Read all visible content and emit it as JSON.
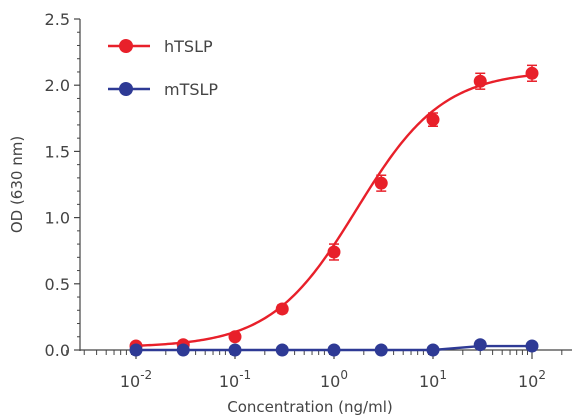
{
  "chart_data": {
    "type": "line",
    "title": "",
    "xlabel": "Concentration (ng/ml)",
    "ylabel": "OD (630 nm)",
    "xscale": "log",
    "xlim": [
      0.002,
      300
    ],
    "ylim": [
      0,
      2.5
    ],
    "grid": false,
    "legend_position": "top-left",
    "x_tick_labels": [
      {
        "base": "10",
        "exp": "-2",
        "value": 0.01
      },
      {
        "base": "10",
        "exp": "-1",
        "value": 0.1
      },
      {
        "base": "10",
        "exp": "0",
        "value": 1
      },
      {
        "base": "10",
        "exp": "1",
        "value": 10
      },
      {
        "base": "10",
        "exp": "2",
        "value": 100
      }
    ],
    "y_tick_labels": [
      "0.0",
      "0.5",
      "1.0",
      "1.5",
      "2.0",
      "2.5"
    ],
    "y_tick_values": [
      0,
      0.5,
      1.0,
      1.5,
      2.0,
      2.5
    ],
    "series": [
      {
        "name": "hTSLP",
        "color": "#e8202a",
        "x": [
          0.01,
          0.03,
          0.1,
          0.3,
          1,
          3,
          10,
          30,
          100
        ],
        "y": [
          0.03,
          0.04,
          0.1,
          0.31,
          0.74,
          1.26,
          1.74,
          2.03,
          2.09
        ],
        "error": [
          0.02,
          0.02,
          0.02,
          0.03,
          0.06,
          0.06,
          0.05,
          0.06,
          0.06
        ],
        "fit": {
          "bottom": 0.02,
          "top": 2.11,
          "ec50": 1.7,
          "hill": 1.0
        }
      },
      {
        "name": "mTSLP",
        "color": "#2e3a95",
        "x": [
          0.01,
          0.03,
          0.1,
          0.3,
          1,
          3,
          10,
          30,
          100
        ],
        "y": [
          0.0,
          0.0,
          0.0,
          0.0,
          0.0,
          0.0,
          0.0,
          0.04,
          0.03
        ],
        "error": [
          0.01,
          0.01,
          0.01,
          0.01,
          0.01,
          0.01,
          0.01,
          0.01,
          0.01
        ],
        "line_y": [
          0.0,
          0.0,
          0.0,
          0.0,
          0.0,
          0.0,
          0.0,
          0.03,
          0.03
        ]
      }
    ],
    "axis_color": "#444444"
  }
}
